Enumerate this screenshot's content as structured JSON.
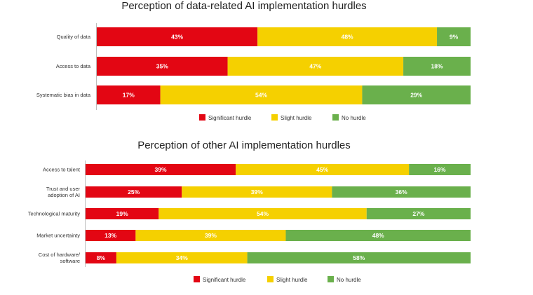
{
  "chart_data": [
    {
      "type": "bar",
      "orientation": "horizontal-stacked-100",
      "title": "Perception of data-related AI implementation hurdles",
      "categories": [
        "Quality of data",
        "Access to data",
        "Systematic bias in data"
      ],
      "series": [
        {
          "name": "Significant hurdle",
          "color": "#e30613",
          "values": [
            43,
            35,
            17
          ]
        },
        {
          "name": "Slight hurdle",
          "color": "#f5d000",
          "values": [
            48,
            47,
            54
          ]
        },
        {
          "name": "No hurdle",
          "color": "#6ab04c",
          "values": [
            9,
            18,
            29
          ]
        }
      ],
      "value_suffix": "%",
      "legend": "bottom-center"
    },
    {
      "type": "bar",
      "orientation": "horizontal-stacked-100",
      "title": "Perception of other AI implementation hurdles",
      "categories": [
        [
          "Access to talent"
        ],
        [
          "Trust and user",
          "adoption of AI"
        ],
        [
          "Technological maturity"
        ],
        [
          "Market uncertainty"
        ],
        [
          "Cost of hardware/",
          "software"
        ]
      ],
      "series": [
        {
          "name": "Significant hurdle",
          "color": "#e30613",
          "values": [
            39,
            25,
            19,
            13,
            8
          ]
        },
        {
          "name": "Slight hurdle",
          "color": "#f5d000",
          "values": [
            45,
            39,
            54,
            39,
            34
          ]
        },
        {
          "name": "No hurdle",
          "color": "#6ab04c",
          "values": [
            16,
            36,
            27,
            48,
            58
          ]
        }
      ],
      "value_suffix": "%",
      "legend": "bottom-center"
    }
  ]
}
